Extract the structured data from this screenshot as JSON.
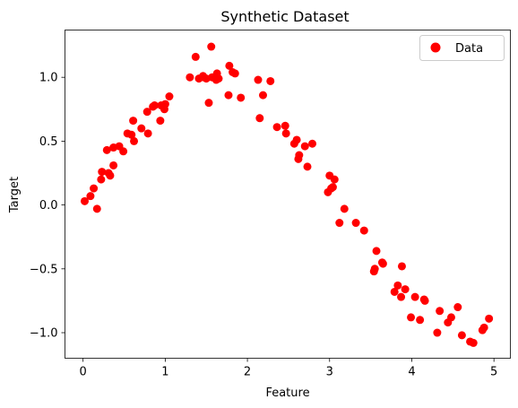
{
  "chart_data": {
    "type": "scatter",
    "title": "Synthetic Dataset",
    "xlabel": "Feature",
    "ylabel": "Target",
    "xlim": [
      -0.22,
      5.2
    ],
    "ylim": [
      -1.2,
      1.37
    ],
    "xticks": [
      0,
      1,
      2,
      3,
      4,
      5
    ],
    "xtick_labels": [
      "0",
      "1",
      "2",
      "3",
      "4",
      "5"
    ],
    "yticks": [
      -1.0,
      -0.5,
      0.0,
      0.5,
      1.0
    ],
    "ytick_labels": [
      "−1.0",
      "−0.5",
      "0.0",
      "0.5",
      "1.0"
    ],
    "grid": false,
    "legend_position": "top-right",
    "series": [
      {
        "name": "Data",
        "color": "#ff0000",
        "x": [
          0.02,
          0.09,
          0.13,
          0.17,
          0.22,
          0.23,
          0.29,
          0.31,
          0.33,
          0.37,
          0.37,
          0.44,
          0.49,
          0.54,
          0.59,
          0.61,
          0.62,
          0.71,
          0.78,
          0.79,
          0.85,
          0.87,
          0.94,
          0.95,
          0.99,
          1.0,
          1.05,
          1.3,
          1.37,
          1.41,
          1.46,
          1.47,
          1.5,
          1.53,
          1.56,
          1.57,
          1.62,
          1.63,
          1.65,
          1.77,
          1.78,
          1.82,
          1.85,
          1.92,
          2.13,
          2.15,
          2.19,
          2.28,
          2.36,
          2.46,
          2.47,
          2.57,
          2.6,
          2.62,
          2.63,
          2.7,
          2.73,
          2.79,
          2.98,
          3.0,
          3.02,
          3.04,
          3.06,
          3.12,
          3.18,
          3.32,
          3.42,
          3.54,
          3.55,
          3.57,
          3.64,
          3.65,
          3.79,
          3.83,
          3.87,
          3.88,
          3.92,
          3.99,
          4.04,
          4.1,
          4.15,
          4.16,
          4.31,
          4.34,
          4.44,
          4.48,
          4.56,
          4.61,
          4.71,
          4.75,
          4.86,
          4.88,
          4.94
        ],
        "y": [
          0.03,
          0.07,
          0.13,
          -0.03,
          0.2,
          0.26,
          0.43,
          0.25,
          0.23,
          0.31,
          0.45,
          0.46,
          0.42,
          0.56,
          0.55,
          0.66,
          0.5,
          0.6,
          0.73,
          0.56,
          0.77,
          0.78,
          0.66,
          0.78,
          0.75,
          0.79,
          0.85,
          1.0,
          1.16,
          0.99,
          1.01,
          1.0,
          0.99,
          0.8,
          1.24,
          1.0,
          0.98,
          1.03,
          0.99,
          0.86,
          1.09,
          1.04,
          1.03,
          0.84,
          0.98,
          0.68,
          0.86,
          0.97,
          0.61,
          0.62,
          0.56,
          0.48,
          0.51,
          0.36,
          0.39,
          0.46,
          0.3,
          0.48,
          0.1,
          0.23,
          0.13,
          0.14,
          0.2,
          -0.14,
          -0.03,
          -0.14,
          -0.2,
          -0.52,
          -0.5,
          -0.36,
          -0.45,
          -0.46,
          -0.68,
          -0.63,
          -0.72,
          -0.48,
          -0.66,
          -0.88,
          -0.72,
          -0.9,
          -0.74,
          -0.75,
          -1.0,
          -0.83,
          -0.92,
          -0.88,
          -0.8,
          -1.02,
          -1.07,
          -1.08,
          -0.98,
          -0.96,
          -0.89
        ]
      }
    ]
  }
}
